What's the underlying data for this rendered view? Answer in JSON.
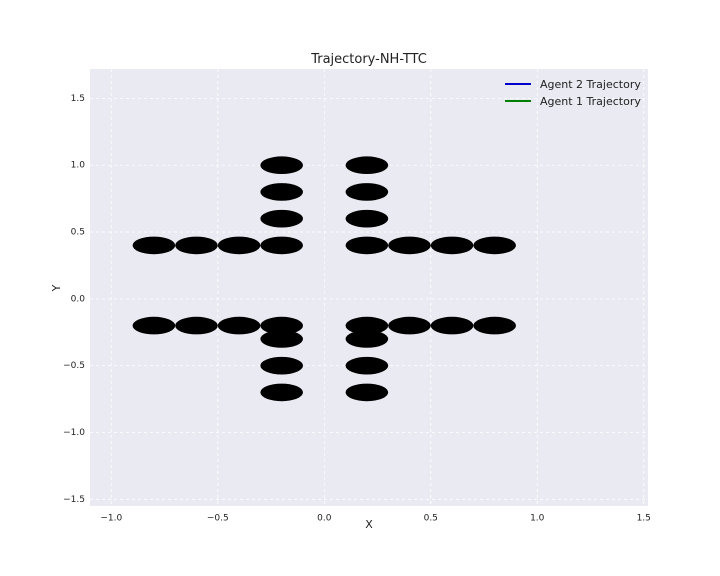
{
  "chart_data": {
    "type": "scatter",
    "title": "Trajectory-NH-TTC",
    "xlabel": "X",
    "ylabel": "Y",
    "xlim": [
      -1.1,
      1.52
    ],
    "ylim": [
      -1.55,
      1.72
    ],
    "grid": true,
    "legend_position": "top-right",
    "xticks": [
      "−1.0",
      "−0.5",
      "0.0",
      "0.5",
      "1.0",
      "1.5"
    ],
    "xtick_values": [
      -1.0,
      -0.5,
      0.0,
      0.5,
      1.0,
      1.5
    ],
    "yticks": [
      "−1.5",
      "−1.0",
      "−0.5",
      "0.0",
      "0.5",
      "1.0",
      "1.5"
    ],
    "ytick_values": [
      -1.5,
      -1.0,
      -0.5,
      0.0,
      0.5,
      1.0,
      1.5
    ],
    "series": [
      {
        "name": "Agent 2 Trajectory",
        "color": "#0000cc",
        "values": []
      },
      {
        "name": "Agent 1 Trajectory",
        "color": "#008000",
        "values": []
      }
    ],
    "obstacles": {
      "color": "#000000",
      "radius_x": 0.1,
      "radius_y": 0.1,
      "centers": [
        {
          "x": -0.8,
          "y": 0.4
        },
        {
          "x": -0.6,
          "y": 0.4
        },
        {
          "x": -0.4,
          "y": 0.4
        },
        {
          "x": -0.2,
          "y": 0.4
        },
        {
          "x": -0.2,
          "y": 0.6
        },
        {
          "x": -0.2,
          "y": 0.8
        },
        {
          "x": -0.2,
          "y": 1.0
        },
        {
          "x": 0.2,
          "y": 1.0
        },
        {
          "x": 0.2,
          "y": 0.8
        },
        {
          "x": 0.2,
          "y": 0.6
        },
        {
          "x": 0.2,
          "y": 0.4
        },
        {
          "x": 0.4,
          "y": 0.4
        },
        {
          "x": 0.6,
          "y": 0.4
        },
        {
          "x": 0.8,
          "y": 0.4
        },
        {
          "x": -0.8,
          "y": -0.2
        },
        {
          "x": -0.6,
          "y": -0.2
        },
        {
          "x": -0.4,
          "y": -0.2
        },
        {
          "x": -0.2,
          "y": -0.2
        },
        {
          "x": -0.2,
          "y": -0.3
        },
        {
          "x": -0.2,
          "y": -0.5
        },
        {
          "x": -0.2,
          "y": -0.7
        },
        {
          "x": 0.2,
          "y": -0.2
        },
        {
          "x": 0.2,
          "y": -0.3
        },
        {
          "x": 0.2,
          "y": -0.5
        },
        {
          "x": 0.2,
          "y": -0.7
        },
        {
          "x": 0.4,
          "y": -0.2
        },
        {
          "x": 0.6,
          "y": -0.2
        },
        {
          "x": 0.8,
          "y": -0.2
        }
      ]
    }
  },
  "colors": {
    "plot_background": "#eaeaf2",
    "grid": "#ffffff",
    "obstacle": "#000000"
  }
}
